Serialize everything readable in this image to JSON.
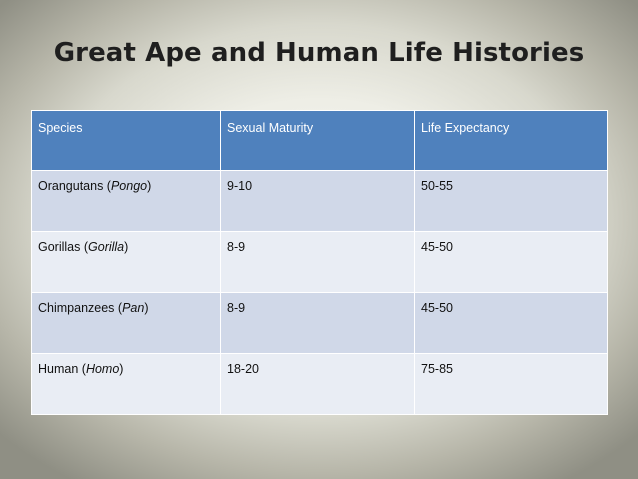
{
  "title": "Great Ape and Human Life Histories",
  "table": {
    "headers": [
      "Species",
      "Sexual Maturity",
      "Life Expectancy"
    ],
    "rows": [
      {
        "common": "Orangutans",
        "genus": "Pongo",
        "maturity": "9-10",
        "life": "50-55"
      },
      {
        "common": "Gorillas",
        "genus": "Gorilla",
        "maturity": "8-9",
        "life": "45-50"
      },
      {
        "common": "Chimpanzees",
        "genus": "Pan",
        "maturity": "8-9",
        "life": "45-50"
      },
      {
        "common": "Human",
        "genus": "Homo",
        "maturity": "18-20",
        "life": "75-85"
      }
    ]
  },
  "colors": {
    "header_bg": "#4f81bd",
    "row_dark": "#d0d8e8",
    "row_light": "#e9edf4"
  }
}
